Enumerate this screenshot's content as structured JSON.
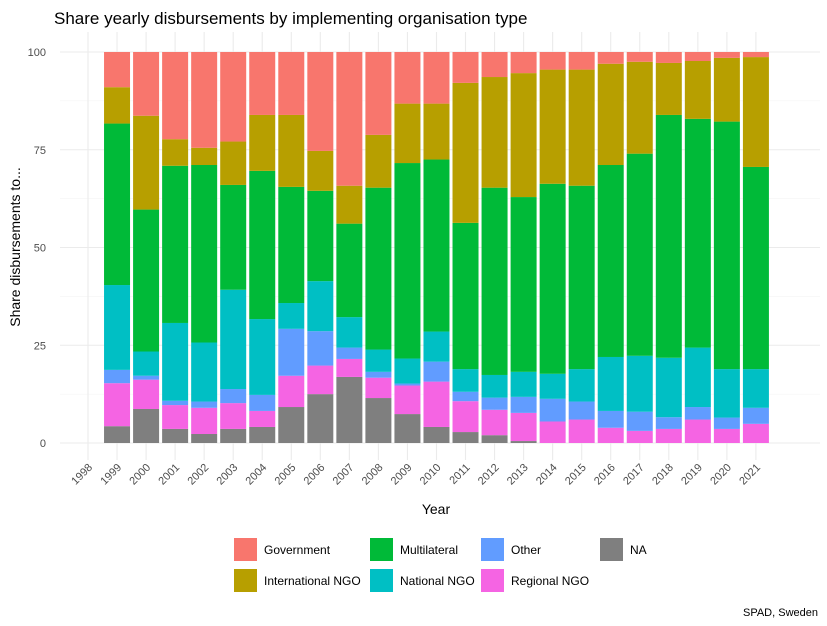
{
  "chart_data": {
    "type": "bar",
    "stacked": true,
    "title": "Share yearly disbursements by implementing organisation type",
    "xlabel": "Year",
    "ylabel": "Share disbursements to...",
    "caption": "SPAD, Sweden",
    "ylim": [
      0,
      100
    ],
    "yticks": [
      0,
      25,
      50,
      75,
      100
    ],
    "grid": true,
    "legend_position": "bottom",
    "categories": [
      "1998",
      "1999",
      "2000",
      "2001",
      "2002",
      "2003",
      "2004",
      "2005",
      "2006",
      "2007",
      "2008",
      "2009",
      "2010",
      "2011",
      "2012",
      "2013",
      "2014",
      "2015",
      "2016",
      "2017",
      "2018",
      "2019",
      "2020",
      "2021"
    ],
    "legend_order": [
      "Government",
      "Multilateral",
      "Other",
      "NA",
      "International NGO",
      "National NGO",
      "Regional NGO"
    ],
    "series": [
      {
        "name": "NA",
        "color": "#7F7F7F",
        "values": [
          0,
          4.3,
          8.7,
          3.6,
          2.3,
          3.6,
          4.1,
          9.2,
          12.5,
          16.9,
          11.5,
          7.4,
          4.1,
          2.8,
          2.0,
          0.5,
          0,
          0,
          0,
          0,
          0,
          0,
          0,
          0
        ]
      },
      {
        "name": "Regional NGO",
        "color": "#F564E3",
        "values": [
          0,
          11.0,
          7.5,
          6.1,
          6.7,
          6.6,
          4.1,
          8.0,
          7.3,
          4.6,
          5.2,
          7.3,
          11.6,
          7.9,
          6.5,
          7.2,
          5.5,
          6.0,
          3.9,
          3.1,
          3.6,
          6.0,
          3.6,
          4.9
        ]
      },
      {
        "name": "Other",
        "color": "#619CFF",
        "values": [
          0,
          3.4,
          1.0,
          1.1,
          1.6,
          3.6,
          4.1,
          12.0,
          8.8,
          2.9,
          1.5,
          0.5,
          5.1,
          2.4,
          3.1,
          4.1,
          5.8,
          4.6,
          4.3,
          4.9,
          3.0,
          3.2,
          2.9,
          4.1
        ]
      },
      {
        "name": "National NGO",
        "color": "#00BFC4",
        "values": [
          0,
          21.7,
          6.2,
          19.9,
          15.1,
          25.4,
          19.4,
          6.6,
          12.8,
          7.8,
          5.7,
          6.4,
          7.7,
          5.8,
          5.8,
          6.4,
          6.4,
          8.3,
          13.8,
          14.3,
          15.2,
          15.2,
          12.4,
          9.9
        ]
      },
      {
        "name": "Multilateral",
        "color": "#00BA38",
        "values": [
          0,
          41.3,
          36.3,
          40.2,
          45.4,
          26.8,
          37.9,
          29.7,
          23.1,
          23.9,
          41.4,
          50.0,
          44.0,
          37.4,
          47.9,
          44.7,
          48.6,
          46.9,
          49.1,
          51.7,
          62.1,
          58.5,
          63.3,
          51.7
        ]
      },
      {
        "name": "International NGO",
        "color": "#B79F00",
        "values": [
          0,
          9.3,
          24.0,
          6.8,
          4.4,
          11.1,
          14.3,
          18.4,
          10.2,
          9.7,
          13.5,
          15.2,
          14.3,
          35.8,
          28.3,
          31.7,
          29.2,
          29.7,
          25.9,
          23.5,
          13.3,
          14.8,
          16.3,
          28.1
        ]
      },
      {
        "name": "Government",
        "color": "#F8766D",
        "values": [
          0,
          9.0,
          16.3,
          22.3,
          24.5,
          22.9,
          16.1,
          16.1,
          25.3,
          34.2,
          21.2,
          13.2,
          13.2,
          7.9,
          6.4,
          5.4,
          4.5,
          4.5,
          3.0,
          2.5,
          2.8,
          2.3,
          1.5,
          1.3
        ]
      }
    ]
  }
}
